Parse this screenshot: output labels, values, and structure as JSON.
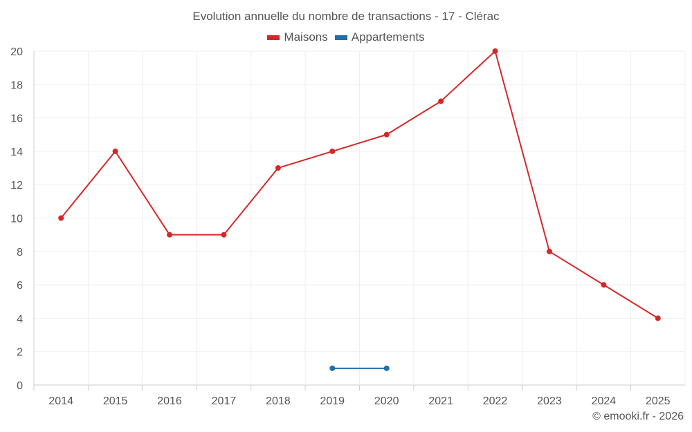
{
  "chart_data": {
    "type": "line",
    "title": "Evolution annuelle du nombre de transactions - 17 - Clérac",
    "x": [
      "2014",
      "2015",
      "2016",
      "2017",
      "2018",
      "2019",
      "2020",
      "2021",
      "2022",
      "2023",
      "2024",
      "2025"
    ],
    "ylim": [
      0,
      20
    ],
    "yticks": [
      0,
      2,
      4,
      6,
      8,
      10,
      12,
      14,
      16,
      18,
      20
    ],
    "grid": true,
    "legend_position": "top-center",
    "series": [
      {
        "name": "Maisons",
        "color": "#d62728",
        "values": [
          10,
          14,
          9,
          9,
          13,
          14,
          15,
          17,
          20,
          8,
          6,
          4
        ]
      },
      {
        "name": "Appartements",
        "color": "#1f6fa8",
        "values": [
          null,
          null,
          null,
          null,
          null,
          1,
          1,
          null,
          null,
          null,
          null,
          null
        ]
      }
    ]
  },
  "footer": {
    "copyright": "© emooki.fr - 2026"
  }
}
